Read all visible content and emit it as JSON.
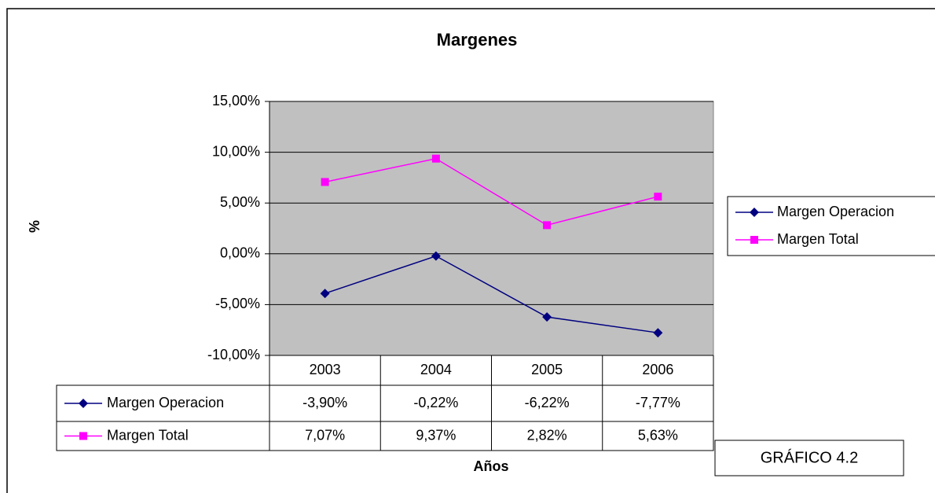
{
  "chart_data": {
    "type": "line",
    "title": "Margenes",
    "x_label": "Años",
    "y_label": "%",
    "categories": [
      "2003",
      "2004",
      "2005",
      "2006"
    ],
    "series": [
      {
        "name": "Margen Operacion",
        "color": "#000080",
        "marker": "diamond",
        "values": [
          -3.9,
          -0.22,
          -6.22,
          -7.77
        ],
        "value_labels": [
          "-3,90%",
          "-0,22%",
          "-6,22%",
          "-7,77%"
        ]
      },
      {
        "name": "Margen Total",
        "color": "#ff00ff",
        "marker": "square",
        "values": [
          7.07,
          9.37,
          2.82,
          5.63
        ],
        "value_labels": [
          "7,07%",
          "9,37%",
          "2,82%",
          "5,63%"
        ]
      }
    ],
    "ylim": [
      -10,
      15
    ],
    "yticks": [
      {
        "value": -10,
        "label": "-10,00%"
      },
      {
        "value": -5,
        "label": "-5,00%"
      },
      {
        "value": 0,
        "label": "0,00%"
      },
      {
        "value": 5,
        "label": "5,00%"
      },
      {
        "value": 10,
        "label": "10,00%"
      },
      {
        "value": 15,
        "label": "15,00%"
      }
    ],
    "grid": true,
    "plot_background": "#c0c0c0",
    "legend": "right",
    "annotation": "GRÁFICO 4.2"
  }
}
